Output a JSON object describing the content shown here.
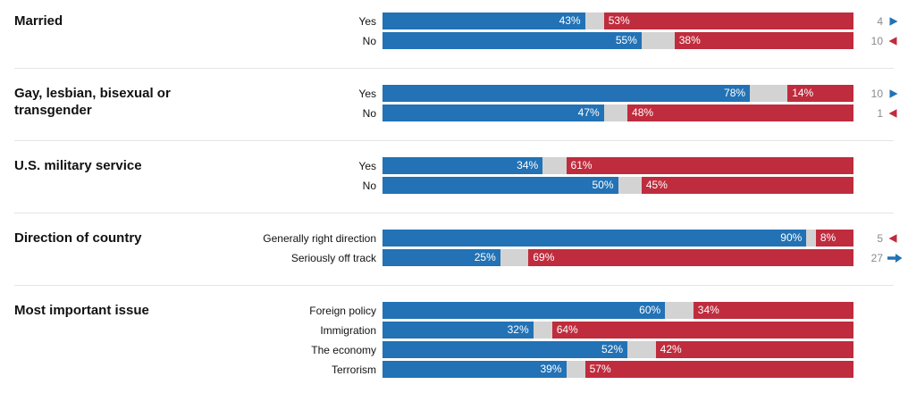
{
  "colors": {
    "blue": "#2272b5",
    "red": "#bf2c3d",
    "gap": "#d3d3d3",
    "divider": "#e4e4e4",
    "shift_number": "#8a8a8a",
    "row_label": "#121212",
    "section_title": "#111111",
    "bar_value_text": "#ffffff"
  },
  "chart_data": {
    "type": "bar",
    "subtype": "horizontal-diverging-stacked",
    "unit": "percent",
    "axis_range": [
      0,
      100
    ],
    "grid": false,
    "legend": "none",
    "series_keys": [
      "blue",
      "gap",
      "red"
    ],
    "sections": [
      {
        "title": "Married",
        "rows": [
          {
            "label": "Yes",
            "blue": 43,
            "red": 53,
            "blue_text": "43%",
            "red_text": "53%",
            "shift": {
              "value": "4",
              "direction": "right",
              "color": "blue",
              "style": "triangle"
            }
          },
          {
            "label": "No",
            "blue": 55,
            "red": 38,
            "blue_text": "55%",
            "red_text": "38%",
            "shift": {
              "value": "10",
              "direction": "left",
              "color": "red",
              "style": "triangle"
            }
          }
        ]
      },
      {
        "title": "Gay, lesbian, bisexual or transgender",
        "rows": [
          {
            "label": "Yes",
            "blue": 78,
            "red": 14,
            "blue_text": "78%",
            "red_text": "14%",
            "shift": {
              "value": "10",
              "direction": "right",
              "color": "blue",
              "style": "triangle"
            }
          },
          {
            "label": "No",
            "blue": 47,
            "red": 48,
            "blue_text": "47%",
            "red_text": "48%",
            "shift": {
              "value": "1",
              "direction": "left",
              "color": "red",
              "style": "triangle"
            }
          }
        ]
      },
      {
        "title": "U.S. military service",
        "rows": [
          {
            "label": "Yes",
            "blue": 34,
            "red": 61,
            "blue_text": "34%",
            "red_text": "61%",
            "shift": null
          },
          {
            "label": "No",
            "blue": 50,
            "red": 45,
            "blue_text": "50%",
            "red_text": "45%",
            "shift": null
          }
        ]
      },
      {
        "title": "Direction of country",
        "rows": [
          {
            "label": "Generally right direction",
            "blue": 90,
            "red": 8,
            "blue_text": "90%",
            "red_text": "8%",
            "shift": {
              "value": "5",
              "direction": "left",
              "color": "red",
              "style": "triangle"
            }
          },
          {
            "label": "Seriously off track",
            "blue": 25,
            "red": 69,
            "blue_text": "25%",
            "red_text": "69%",
            "shift": {
              "value": "27",
              "direction": "right",
              "color": "blue",
              "style": "stem"
            }
          }
        ]
      },
      {
        "title": "Most important issue",
        "rows": [
          {
            "label": "Foreign policy",
            "blue": 60,
            "red": 34,
            "blue_text": "60%",
            "red_text": "34%",
            "shift": null
          },
          {
            "label": "Immigration",
            "blue": 32,
            "red": 64,
            "blue_text": "32%",
            "red_text": "64%",
            "shift": null
          },
          {
            "label": "The economy",
            "blue": 52,
            "red": 42,
            "blue_text": "52%",
            "red_text": "42%",
            "shift": null
          },
          {
            "label": "Terrorism",
            "blue": 39,
            "red": 57,
            "blue_text": "39%",
            "red_text": "57%",
            "shift": null
          }
        ]
      }
    ]
  }
}
